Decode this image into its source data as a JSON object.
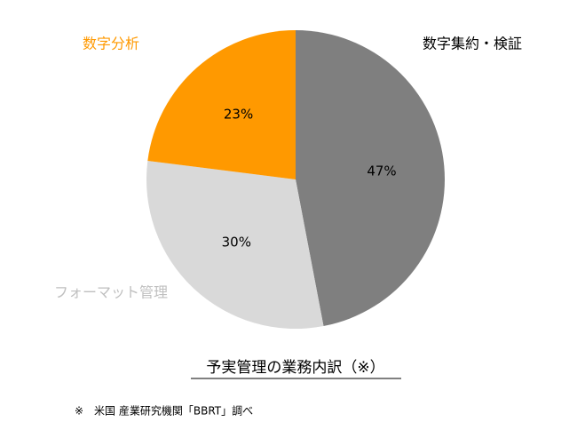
{
  "chart_data": {
    "type": "pie",
    "categories": [
      "数字集約・検証",
      "フォーマット管理",
      "数字分析"
    ],
    "values": [
      47,
      30,
      23
    ],
    "value_labels": [
      "47%",
      "30%",
      "23%"
    ],
    "colors": [
      "#7f7f7f",
      "#d9d9d9",
      "#ff9900"
    ],
    "label_colors": [
      "#000000",
      "#bfbfbf",
      "#ff9900"
    ],
    "title": "予実管理の業務内訳（※）",
    "note": "※　米国 産業研究機関「BBRT」調べ"
  }
}
